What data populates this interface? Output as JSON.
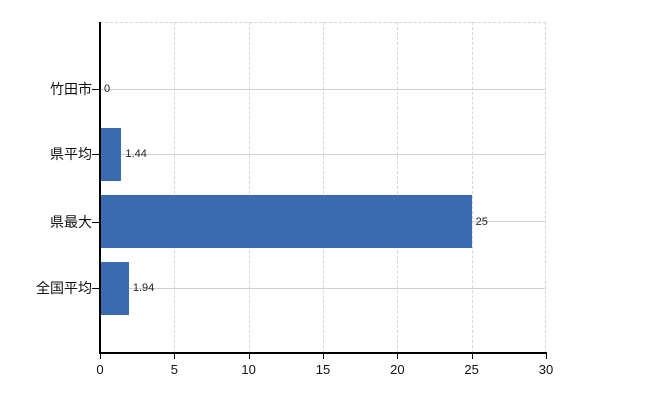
{
  "chart_data": {
    "type": "bar",
    "orientation": "horizontal",
    "title": "",
    "xlabel": "",
    "ylabel": "",
    "categories": [
      "竹田市",
      "県平均",
      "県最大",
      "全国平均"
    ],
    "values": [
      0,
      1.44,
      25,
      1.94
    ],
    "value_labels": [
      "0",
      "1.44",
      "25",
      "1.94"
    ],
    "xlim": [
      0,
      30
    ],
    "x_tick_values": [
      0,
      5,
      10,
      15,
      20,
      25,
      30
    ],
    "x_tick_labels": [
      "0",
      "5",
      "10",
      "15",
      "20",
      "25",
      "30"
    ],
    "grid": true,
    "legend": false,
    "colors": {
      "bar": "#3a6ab0",
      "grid_horizontal": "#ccd5cc",
      "grid_vertical": "#d6d6d6",
      "plot_border": "#d3d3d3",
      "axis": "#000000",
      "text": "#111111",
      "value_text": "#222222",
      "background": "#ffffff"
    }
  }
}
